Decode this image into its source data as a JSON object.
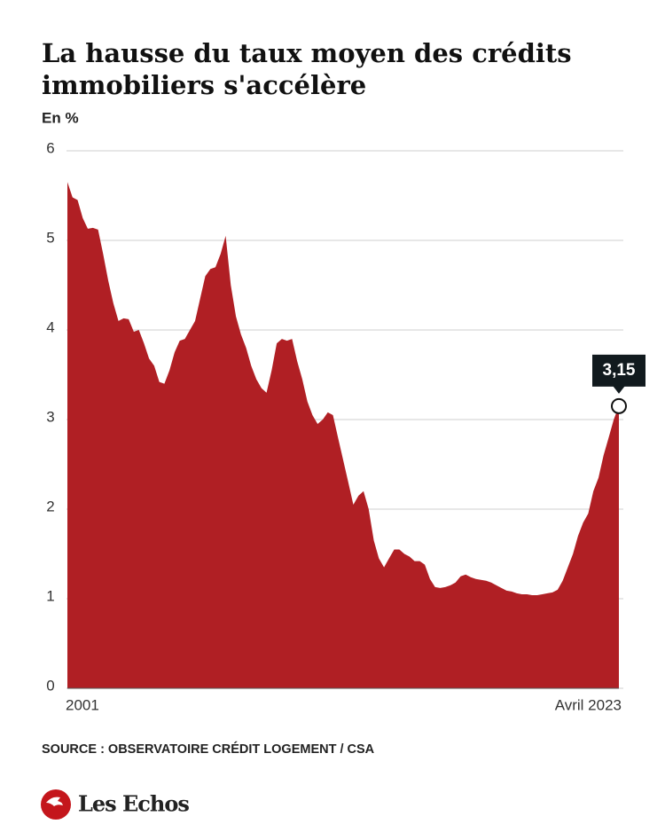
{
  "chart_data": {
    "type": "area",
    "title_lines": [
      "La hausse du taux moyen des crédits",
      "immobiliers s'accélère"
    ],
    "ylabel": "En %",
    "source": "SOURCE : OBSERVATOIRE CRÉDIT LOGEMENT / CSA",
    "brand": "Les Echos",
    "color": "#b01f24",
    "ylim": [
      0,
      6
    ],
    "yticks": [
      0,
      1,
      2,
      3,
      4,
      5,
      6
    ],
    "grid": true,
    "categories": [
      "2001",
      null,
      null,
      null,
      null,
      null,
      null,
      null,
      null,
      null,
      null,
      null,
      null,
      null,
      null,
      null,
      null,
      null,
      null,
      null,
      null,
      null,
      null,
      null,
      null,
      null,
      null,
      null,
      null,
      null,
      null,
      null,
      null,
      null,
      null,
      null,
      null,
      null,
      null,
      null,
      null,
      null,
      null,
      null,
      null,
      null,
      null,
      null,
      null,
      null,
      null,
      null,
      null,
      null,
      null,
      null,
      null,
      null,
      null,
      null,
      null,
      null,
      null,
      null,
      null,
      null,
      null,
      null,
      null,
      null,
      null,
      null,
      null,
      null,
      null,
      null,
      null,
      null,
      null,
      null,
      null,
      null,
      null,
      null,
      null,
      null,
      null,
      null,
      null,
      null,
      null,
      null,
      null,
      null,
      null,
      null,
      null,
      null,
      null,
      null,
      null,
      null,
      null,
      null,
      null,
      null,
      null,
      null,
      "Avril 2023"
    ],
    "values": [
      5.65,
      5.48,
      5.45,
      5.25,
      5.13,
      5.14,
      5.12,
      4.85,
      4.55,
      4.3,
      4.1,
      4.13,
      4.12,
      3.98,
      4.0,
      3.85,
      3.68,
      3.6,
      3.42,
      3.4,
      3.55,
      3.75,
      3.88,
      3.9,
      4.0,
      4.1,
      4.35,
      4.6,
      4.68,
      4.7,
      4.85,
      5.05,
      4.5,
      4.15,
      3.95,
      3.8,
      3.6,
      3.45,
      3.35,
      3.3,
      3.55,
      3.85,
      3.9,
      3.88,
      3.9,
      3.65,
      3.45,
      3.2,
      3.05,
      2.95,
      3.0,
      3.08,
      3.05,
      2.8,
      2.55,
      2.3,
      2.05,
      2.15,
      2.2,
      2.0,
      1.65,
      1.45,
      1.35,
      1.45,
      1.55,
      1.55,
      1.5,
      1.47,
      1.42,
      1.42,
      1.38,
      1.22,
      1.13,
      1.12,
      1.13,
      1.15,
      1.18,
      1.25,
      1.27,
      1.24,
      1.22,
      1.21,
      1.2,
      1.18,
      1.15,
      1.12,
      1.09,
      1.08,
      1.06,
      1.05,
      1.05,
      1.04,
      1.04,
      1.05,
      1.06,
      1.07,
      1.1,
      1.2,
      1.35,
      1.5,
      1.7,
      1.85,
      1.95,
      2.2,
      2.35,
      2.6,
      2.8,
      3.0,
      3.15
    ],
    "value_labels": [
      null,
      null,
      null,
      null,
      null,
      null,
      null,
      null,
      null,
      null,
      null,
      null,
      null,
      null,
      null,
      null,
      null,
      null,
      null,
      null,
      null,
      null,
      null,
      null,
      null,
      null,
      null,
      null,
      null,
      null,
      null,
      null,
      null,
      null,
      null,
      null,
      null,
      null,
      null,
      null,
      null,
      null,
      null,
      null,
      null,
      null,
      null,
      null,
      null,
      null,
      null,
      null,
      null,
      null,
      null,
      null,
      null,
      null,
      null,
      null,
      null,
      null,
      null,
      null,
      null,
      null,
      null,
      null,
      null,
      null,
      null,
      null,
      null,
      null,
      null,
      null,
      null,
      null,
      null,
      null,
      null,
      null,
      null,
      null,
      null,
      null,
      null,
      null,
      null,
      null,
      null,
      null,
      null,
      null,
      null,
      null,
      null,
      null,
      null,
      null,
      null,
      null,
      null,
      null,
      null,
      null,
      null,
      null,
      "3,15"
    ]
  }
}
